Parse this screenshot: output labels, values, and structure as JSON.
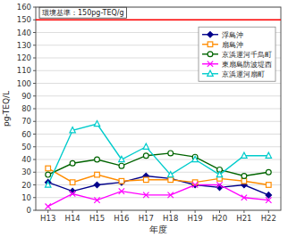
{
  "chart_data": {
    "type": "line",
    "xlabel": "年度",
    "ylabel": "pg-TEQ/L",
    "categories": [
      "H13",
      "H14",
      "H15",
      "H16",
      "H17",
      "H18",
      "H19",
      "H20",
      "H21",
      "H22"
    ],
    "series": [
      {
        "name": "浮島沖",
        "color": "#00008B",
        "marker": "diamond",
        "line_style": "solid",
        "values": [
          22,
          15,
          20,
          22,
          27,
          25,
          20,
          18,
          20,
          12
        ]
      },
      {
        "name": "扇島沖",
        "color": "#FF8C00",
        "marker": "square-open",
        "line_style": "solid",
        "values": [
          33,
          22,
          28,
          23,
          24,
          24,
          22,
          25,
          23,
          20
        ]
      },
      {
        "name": "京浜運河千鳥町",
        "color": "#006400",
        "marker": "circle-open",
        "line_style": "solid",
        "values": [
          28,
          37,
          40,
          35,
          43,
          45,
          42,
          32,
          27,
          30
        ]
      },
      {
        "name": "東扇島防波堤西",
        "color": "#FF00FF",
        "marker": "x",
        "line_style": "solid",
        "values": [
          3,
          13,
          8,
          15,
          12,
          12,
          20,
          20,
          10,
          8
        ]
      },
      {
        "name": "京浜運河扇町",
        "color": "#00CCCC",
        "marker": "triangle-open",
        "line_style": "solid",
        "values": [
          20,
          63,
          68,
          40,
          50,
          28,
          40,
          28,
          43,
          43
        ]
      }
    ],
    "ylim": [
      0,
      160
    ],
    "yticks": [
      0,
      10,
      20,
      30,
      40,
      50,
      60,
      70,
      80,
      90,
      100,
      110,
      120,
      130,
      140,
      150,
      160
    ],
    "grid": true,
    "legend": "upper right",
    "annotations": [
      {
        "text": "環境基準：150pg-TEQ/g",
        "y": 150,
        "color": "#FF0000"
      }
    ]
  }
}
